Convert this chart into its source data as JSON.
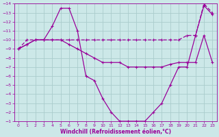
{
  "xlabel": "Windchill (Refroidissement éolien,°C)",
  "background_color": "#cce8e8",
  "grid_color": "#aacccc",
  "line_color": "#990099",
  "xlim": [
    -0.5,
    23.5
  ],
  "ylim_bottom": -14,
  "ylim_top": -1,
  "xticks": [
    0,
    1,
    2,
    3,
    4,
    5,
    6,
    7,
    8,
    9,
    10,
    11,
    12,
    13,
    14,
    15,
    16,
    17,
    18,
    19,
    20,
    21,
    22,
    23
  ],
  "yticks": [
    -1,
    -2,
    -3,
    -4,
    -5,
    -6,
    -7,
    -8,
    -9,
    -10,
    -11,
    -12,
    -13,
    -14
  ],
  "curve1_x": [
    0,
    1,
    2,
    3,
    4,
    5,
    6,
    7,
    8,
    9,
    10,
    11,
    12,
    13,
    14,
    15,
    16,
    17,
    18,
    19,
    20,
    21,
    22,
    23
  ],
  "curve1_y": [
    -9,
    -9.5,
    -10,
    -10,
    -11.5,
    -13.5,
    -13.5,
    -11,
    -6,
    -5.5,
    -3.5,
    -2,
    -1,
    -1,
    -1,
    -1,
    -2,
    -3,
    -5,
    -7,
    -7,
    -10.5,
    -13.8,
    -12.8
  ],
  "curve2_x": [
    0,
    1,
    2,
    3,
    4,
    5,
    6,
    7,
    8,
    9,
    10,
    11,
    12,
    13,
    14,
    15,
    16,
    17,
    18,
    19,
    20,
    21,
    22,
    23
  ],
  "curve2_y": [
    -9,
    -10,
    -10,
    -10,
    -10,
    -10,
    -10,
    -10,
    -10,
    -10,
    -10,
    -10,
    -10,
    -10,
    -10,
    -10,
    -10,
    -10,
    -10,
    -10,
    -10.5,
    -10.5,
    -14,
    -13
  ],
  "curve3_x": [
    0,
    1,
    2,
    3,
    4,
    5,
    6,
    7,
    8,
    9,
    10,
    11,
    12,
    13,
    14,
    15,
    16,
    17,
    18,
    19,
    20,
    21,
    22,
    23
  ],
  "curve3_y": [
    -9,
    -9.5,
    -10,
    -10,
    -10,
    -10,
    -9.5,
    -9,
    -8.5,
    -8,
    -7.5,
    -7.5,
    -7.5,
    -7,
    -7,
    -7,
    -7,
    -7,
    -7.3,
    -7.5,
    -7.5,
    -7.5,
    -10.5,
    -7.5
  ]
}
